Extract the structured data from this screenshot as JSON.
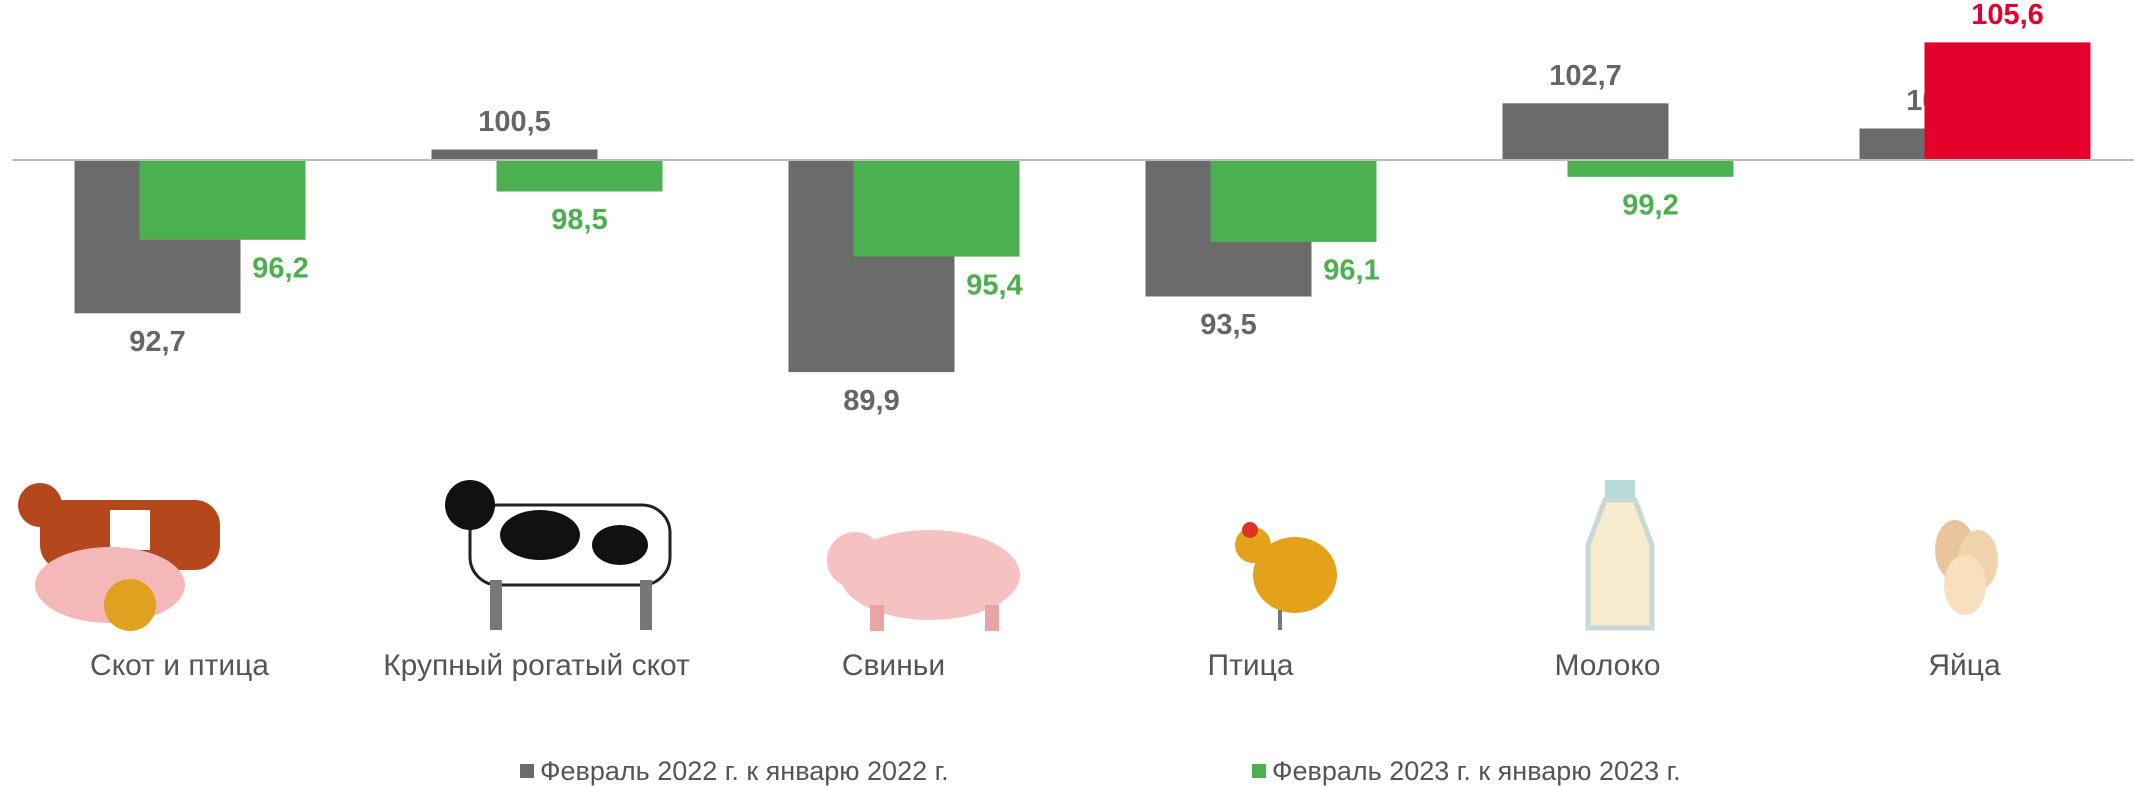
{
  "chart_data": {
    "type": "bar",
    "categories": [
      "Скот и птица",
      "Крупный рогатый скот",
      "Свиньи",
      "Птица",
      "Молоко",
      "Яйца"
    ],
    "baseline": 100,
    "ylim": [
      88,
      107
    ],
    "series": [
      {
        "name": "Февраль 2022 г. к январю 2022 г.",
        "color": "#6b6b6b",
        "values": [
          92.7,
          100.5,
          89.9,
          93.5,
          102.7,
          101.5
        ],
        "value_labels": [
          "92,7",
          "100,5",
          "89,9",
          "93,5",
          "102,7",
          "101,5"
        ]
      },
      {
        "name": "Февраль 2023 г. к январю 2023 г.",
        "color": "#4caf50",
        "colors": [
          "#4caf50",
          "#4caf50",
          "#4caf50",
          "#4caf50",
          "#4caf50",
          "#e4002b"
        ],
        "values": [
          96.2,
          98.5,
          95.4,
          96.1,
          99.2,
          105.6
        ],
        "value_labels": [
          "96,2",
          "98,5",
          "95,4",
          "96,1",
          "99,2",
          "105,6"
        ]
      }
    ]
  }
}
